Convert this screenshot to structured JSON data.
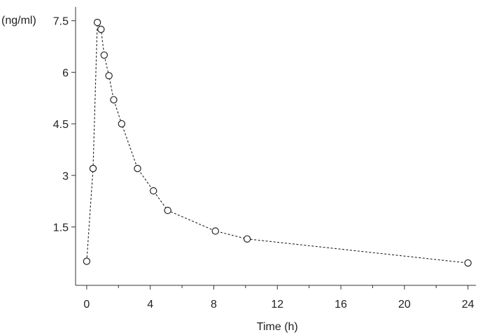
{
  "chart_data": {
    "type": "scatter",
    "ylabel": "(ng/ml)",
    "xlabel": "Time (h)",
    "xlim": [
      -0.7,
      24.5
    ],
    "ylim": [
      -0.2,
      7.9
    ],
    "x_ticks": [
      0,
      4,
      8,
      12,
      16,
      20,
      24
    ],
    "y_ticks": [
      1.5,
      3,
      4.5,
      6,
      7.5
    ],
    "y_tick_labels": [
      "1.5",
      "3",
      "4.5",
      "6",
      "7.5"
    ],
    "x_tick_labels": [
      "0",
      "4",
      "8",
      "12",
      "16",
      "20",
      "24"
    ],
    "line_style": "dashed",
    "marker": "open-circle",
    "grid": false,
    "series": [
      {
        "x": [
          0,
          0.4,
          0.67,
          0.9,
          1.1,
          1.4,
          1.7,
          2.2,
          3.2,
          4.2,
          5.1,
          8.1,
          10.1,
          24
        ],
        "y": [
          0.5,
          3.2,
          7.45,
          7.25,
          6.5,
          5.9,
          5.2,
          4.5,
          3.2,
          2.55,
          1.98,
          1.38,
          1.15,
          0.45
        ]
      }
    ]
  }
}
